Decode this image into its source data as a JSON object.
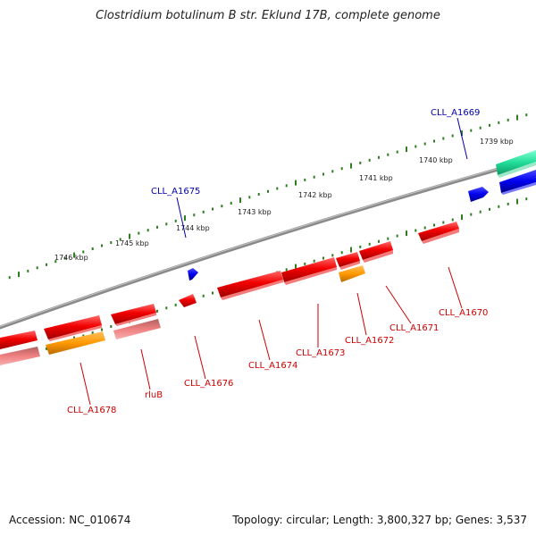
{
  "title": "Clostridium botulinum B str. Eklund 17B, complete genome",
  "footer": {
    "accession": "Accession: NC_010674",
    "topology": "Topology: circular; Length: 3,800,327 bp; Genes: 3,537"
  },
  "colors": {
    "backbone": "#8a8a8a",
    "tick": "#2e7d1e",
    "gene_red": "#f20000",
    "gene_orange": "#ff9900",
    "gene_pink": "#f08080",
    "gene_blue": "#0000ee",
    "gene_teal": "#22dd99",
    "label_red": "#cc0000",
    "label_blue": "#0000aa"
  },
  "kbp_labels": [
    {
      "text": "1739 kbp"
    },
    {
      "text": "1740 kbp"
    },
    {
      "text": "1741 kbp"
    },
    {
      "text": "1742 kbp"
    },
    {
      "text": "1743 kbp"
    },
    {
      "text": "1744 kbp"
    },
    {
      "text": "1745 kbp"
    },
    {
      "text": "1746 kbp"
    }
  ],
  "gene_labels": [
    {
      "text": "CLL_A1669",
      "color": "blue"
    },
    {
      "text": "CLL_A1675",
      "color": "blue"
    },
    {
      "text": "CLL_A1670",
      "color": "red"
    },
    {
      "text": "CLL_A1671",
      "color": "red"
    },
    {
      "text": "CLL_A1672",
      "color": "red"
    },
    {
      "text": "CLL_A1673",
      "color": "red"
    },
    {
      "text": "CLL_A1674",
      "color": "red"
    },
    {
      "text": "CLL_A1676",
      "color": "red"
    },
    {
      "text": "rluB",
      "color": "red"
    },
    {
      "text": "CLL_A1678",
      "color": "red"
    }
  ]
}
